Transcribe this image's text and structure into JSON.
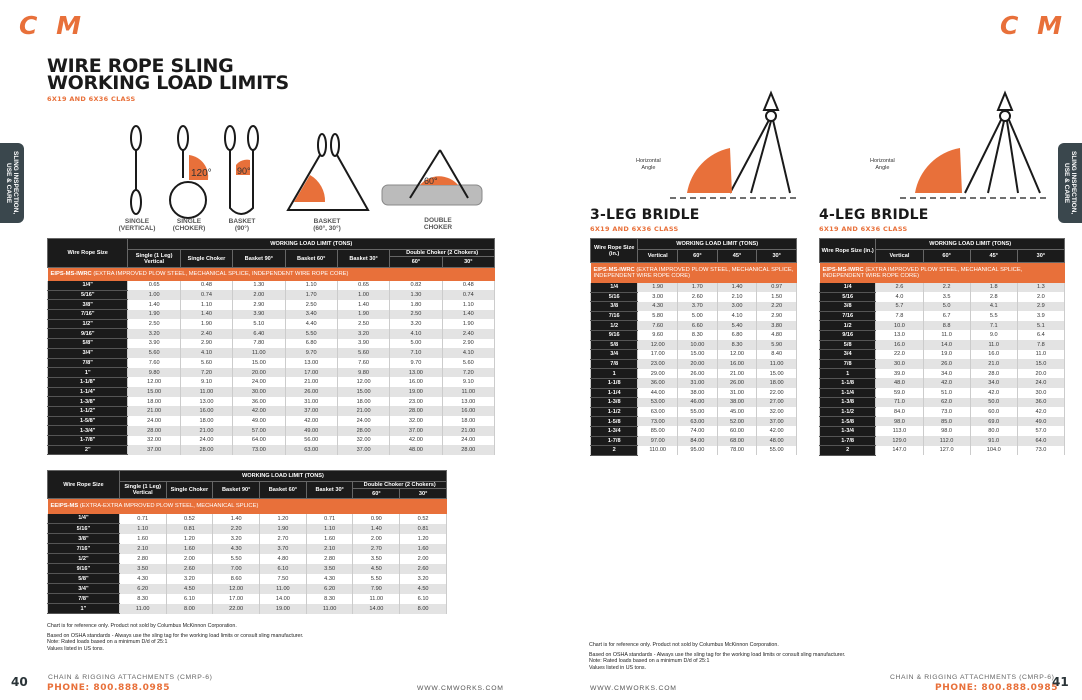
{
  "brand": {
    "logo_text": "CM",
    "accent": "#e8703a",
    "dark": "#1b1b1b"
  },
  "left_page": {
    "title_line1": "WIRE ROPE SLING",
    "title_line2": "WORKING LOAD LIMITS",
    "subtitle": "6X19 AND 6X36 CLASS",
    "side_tab": "SLING INSPECTION,\nUSE & CARE",
    "diagrams": [
      {
        "label": "SINGLE\n(VERTICAL)"
      },
      {
        "label": "SINGLE\n(CHOKER)",
        "angle": "120°"
      },
      {
        "label": "BASKET\n(90°)",
        "angle": "90°"
      },
      {
        "label": "BASKET\n(60°, 30°)"
      },
      {
        "label": "DOUBLE\nCHOKER",
        "angle": "60°"
      }
    ],
    "table1": {
      "size_header": "Wire Rope Size",
      "group_header": "WORKING LOAD LIMIT (TONS)",
      "columns": [
        "Single (1 Leg) Vertical",
        "Single Choker",
        "Basket 90°",
        "Basket 60°",
        "Basket 30°"
      ],
      "double_choker_header": "Double Choker (2 Chokers)",
      "double_choker_cols": [
        "60°",
        "30°"
      ],
      "band_code": "EIPS-MS-IWRC",
      "band_text": "(EXTRA IMPROVED PLOW STEEL, MECHANICAL SPLICE, INDEPENDENT WIRE ROPE CORE)",
      "rows": [
        [
          "1/4\"",
          "0.65",
          "0.48",
          "1.30",
          "1.10",
          "0.65",
          "0.82",
          "0.48"
        ],
        [
          "5/16\"",
          "1.00",
          "0.74",
          "2.00",
          "1.70",
          "1.00",
          "1.30",
          "0.74"
        ],
        [
          "3/8\"",
          "1.40",
          "1.10",
          "2.90",
          "2.50",
          "1.40",
          "1.80",
          "1.10"
        ],
        [
          "7/16\"",
          "1.90",
          "1.40",
          "3.90",
          "3.40",
          "1.90",
          "2.50",
          "1.40"
        ],
        [
          "1/2\"",
          "2.50",
          "1.90",
          "5.10",
          "4.40",
          "2.50",
          "3.20",
          "1.90"
        ],
        [
          "9/16\"",
          "3.20",
          "2.40",
          "6.40",
          "5.50",
          "3.20",
          "4.10",
          "2.40"
        ],
        [
          "5/8\"",
          "3.90",
          "2.90",
          "7.80",
          "6.80",
          "3.90",
          "5.00",
          "2.90"
        ],
        [
          "3/4\"",
          "5.60",
          "4.10",
          "11.00",
          "9.70",
          "5.60",
          "7.10",
          "4.10"
        ],
        [
          "7/8\"",
          "7.60",
          "5.60",
          "15.00",
          "13.00",
          "7.60",
          "9.70",
          "5.60"
        ],
        [
          "1\"",
          "9.80",
          "7.20",
          "20.00",
          "17.00",
          "9.80",
          "13.00",
          "7.20"
        ],
        [
          "1-1/8\"",
          "12.00",
          "9.10",
          "24.00",
          "21.00",
          "12.00",
          "16.00",
          "9.10"
        ],
        [
          "1-1/4\"",
          "15.00",
          "11.00",
          "30.00",
          "26.00",
          "15.00",
          "19.00",
          "11.00"
        ],
        [
          "1-3/8\"",
          "18.00",
          "13.00",
          "36.00",
          "31.00",
          "18.00",
          "23.00",
          "13.00"
        ],
        [
          "1-1/2\"",
          "21.00",
          "16.00",
          "42.00",
          "37.00",
          "21.00",
          "28.00",
          "16.00"
        ],
        [
          "1-5/8\"",
          "24.00",
          "18.00",
          "49.00",
          "42.00",
          "24.00",
          "32.00",
          "18.00"
        ],
        [
          "1-3/4\"",
          "28.00",
          "21.00",
          "57.00",
          "49.00",
          "28.00",
          "37.00",
          "21.00"
        ],
        [
          "1-7/8\"",
          "32.00",
          "24.00",
          "64.00",
          "56.00",
          "32.00",
          "42.00",
          "24.00"
        ],
        [
          "2\"",
          "37.00",
          "28.00",
          "73.00",
          "63.00",
          "37.00",
          "48.00",
          "28.00"
        ]
      ]
    },
    "table2": {
      "size_header": "Wire Rope Size",
      "group_header": "WORKING LOAD LIMIT (TONS)",
      "columns": [
        "Single (1 Leg) Vertical",
        "Single Choker",
        "Basket 90°",
        "Basket 60°",
        "Basket 30°"
      ],
      "double_choker_header": "Double Choker (2 Chokers)",
      "double_choker_cols": [
        "60°",
        "30°"
      ],
      "band_code": "EEIPS-MS",
      "band_text": "(EXTRA-EXTRA IMPROVED PLOW STEEL, MECHANICAL SPLICE)",
      "rows": [
        [
          "1/4\"",
          "0.71",
          "0.52",
          "1.40",
          "1.20",
          "0.71",
          "0.90",
          "0.52"
        ],
        [
          "5/16\"",
          "1.10",
          "0.81",
          "2.20",
          "1.90",
          "1.10",
          "1.40",
          "0.81"
        ],
        [
          "3/8\"",
          "1.60",
          "1.20",
          "3.20",
          "2.70",
          "1.60",
          "2.00",
          "1.20"
        ],
        [
          "7/16\"",
          "2.10",
          "1.60",
          "4.30",
          "3.70",
          "2.10",
          "2.70",
          "1.60"
        ],
        [
          "1/2\"",
          "2.80",
          "2.00",
          "5.50",
          "4.80",
          "2.80",
          "3.50",
          "2.00"
        ],
        [
          "9/16\"",
          "3.50",
          "2.60",
          "7.00",
          "6.10",
          "3.50",
          "4.50",
          "2.60"
        ],
        [
          "5/8\"",
          "4.30",
          "3.20",
          "8.60",
          "7.50",
          "4.30",
          "5.50",
          "3.20"
        ],
        [
          "3/4\"",
          "6.20",
          "4.50",
          "12.00",
          "11.00",
          "6.20",
          "7.90",
          "4.50"
        ],
        [
          "7/8\"",
          "8.30",
          "6.10",
          "17.00",
          "14.00",
          "8.30",
          "11.00",
          "6.10"
        ],
        [
          "1\"",
          "11.00",
          "8.00",
          "22.00",
          "19.00",
          "11.00",
          "14.00",
          "8.00"
        ]
      ]
    },
    "notes": [
      "Chart is for reference only. Product not sold by Columbus McKinnon Corporation.",
      "Based on OSHA standards - Always use the sling tag for the working load limits or consult sling manufacturer.",
      "Note: Rated loads based on a minimum D/d of 25:1",
      "Values listed in US tons."
    ],
    "footer": {
      "page": "40",
      "catalog": "CHAIN & RIGGING ATTACHMENTS (CMRP-6)",
      "phone": "PHONE: 800.888.0985",
      "website": "WWW.CMWORKS.COM"
    }
  },
  "right_page": {
    "side_tab": "SLING INSPECTION,\nUSE & CARE",
    "angle_label": "Horizontal\nAngle",
    "three_leg": {
      "title": "3-LEG BRIDLE",
      "subtitle": "6X19 AND 6X36 CLASS",
      "size_header": "Wire Rope Size (in.)",
      "group_header": "WORKING LOAD LIMIT (TONS)",
      "columns": [
        "Vertical",
        "60°",
        "45°",
        "30°"
      ],
      "band_code": "EIPS-MS-IWRC",
      "band_text": "(EXTRA IMPROVED PLOW STEEL, MECHANICAL SPLICE, INDEPENDENT WIRE ROPE CORE)",
      "rows": [
        [
          "1/4",
          "1.90",
          "1.70",
          "1.40",
          "0.97"
        ],
        [
          "5/16",
          "3.00",
          "2.60",
          "2.10",
          "1.50"
        ],
        [
          "3/8",
          "4.30",
          "3.70",
          "3.00",
          "2.20"
        ],
        [
          "7/16",
          "5.80",
          "5.00",
          "4.10",
          "2.90"
        ],
        [
          "1/2",
          "7.60",
          "6.60",
          "5.40",
          "3.80"
        ],
        [
          "9/16",
          "9.60",
          "8.30",
          "6.80",
          "4.80"
        ],
        [
          "5/8",
          "12.00",
          "10.00",
          "8.30",
          "5.90"
        ],
        [
          "3/4",
          "17.00",
          "15.00",
          "12.00",
          "8.40"
        ],
        [
          "7/8",
          "23.00",
          "20.00",
          "16.00",
          "11.00"
        ],
        [
          "1",
          "29.00",
          "26.00",
          "21.00",
          "15.00"
        ],
        [
          "1-1/8",
          "36.00",
          "31.00",
          "26.00",
          "18.00"
        ],
        [
          "1-1/4",
          "44.00",
          "38.00",
          "31.00",
          "22.00"
        ],
        [
          "1-3/8",
          "53.00",
          "46.00",
          "38.00",
          "27.00"
        ],
        [
          "1-1/2",
          "63.00",
          "55.00",
          "45.00",
          "32.00"
        ],
        [
          "1-5/8",
          "73.00",
          "63.00",
          "52.00",
          "37.00"
        ],
        [
          "1-3/4",
          "85.00",
          "74.00",
          "60.00",
          "42.00"
        ],
        [
          "1-7/8",
          "97.00",
          "84.00",
          "68.00",
          "48.00"
        ],
        [
          "2",
          "110.00",
          "95.00",
          "78.00",
          "55.00"
        ]
      ]
    },
    "four_leg": {
      "title": "4-LEG BRIDLE",
      "subtitle": "6X19 AND 6X36 CLASS",
      "size_header": "Wire Rope Size (in.)",
      "group_header": "WORKING LOAD LIMIT (TONS)",
      "columns": [
        "Vertical",
        "60°",
        "45°",
        "30°"
      ],
      "band_code": "EIPS-MS-IWRC",
      "band_text": "(EXTRA IMPROVED PLOW STEEL, MECHANICAL SPLICE, INDEPENDENT WIRE ROPE CORE)",
      "rows": [
        [
          "1/4",
          "2.6",
          "2.2",
          "1.8",
          "1.3"
        ],
        [
          "5/16",
          "4.0",
          "3.5",
          "2.8",
          "2.0"
        ],
        [
          "3/8",
          "5.7",
          "5.0",
          "4.1",
          "2.9"
        ],
        [
          "7/16",
          "7.8",
          "6.7",
          "5.5",
          "3.9"
        ],
        [
          "1/2",
          "10.0",
          "8.8",
          "7.1",
          "5.1"
        ],
        [
          "9/16",
          "13.0",
          "11.0",
          "9.0",
          "6.4"
        ],
        [
          "5/8",
          "16.0",
          "14.0",
          "11.0",
          "7.8"
        ],
        [
          "3/4",
          "22.0",
          "19.0",
          "16.0",
          "11.0"
        ],
        [
          "7/8",
          "30.0",
          "26.0",
          "21.0",
          "15.0"
        ],
        [
          "1",
          "39.0",
          "34.0",
          "28.0",
          "20.0"
        ],
        [
          "1-1/8",
          "48.0",
          "42.0",
          "34.0",
          "24.0"
        ],
        [
          "1-1/4",
          "59.0",
          "51.0",
          "42.0",
          "30.0"
        ],
        [
          "1-3/8",
          "71.0",
          "62.0",
          "50.0",
          "36.0"
        ],
        [
          "1-1/2",
          "84.0",
          "73.0",
          "60.0",
          "42.0"
        ],
        [
          "1-5/8",
          "98.0",
          "85.0",
          "69.0",
          "49.0"
        ],
        [
          "1-3/4",
          "113.0",
          "98.0",
          "80.0",
          "57.0"
        ],
        [
          "1-7/8",
          "129.0",
          "112.0",
          "91.0",
          "64.0"
        ],
        [
          "2",
          "147.0",
          "127.0",
          "104.0",
          "73.0"
        ]
      ]
    },
    "notes": [
      "Chart is for reference only. Product not sold by Columbus McKinnon Corporation.",
      "Based on OSHA standards - Always use the sling tag for the working load limits or consult sling manufacturer.",
      "Note: Rated loads based on a minimum D/d of 25:1",
      "Values listed in US tons."
    ],
    "footer": {
      "page": "41",
      "catalog": "CHAIN & RIGGING ATTACHMENTS (CMRP-6)",
      "phone": "PHONE: 800.888.0985",
      "website": "WWW.CMWORKS.COM"
    }
  }
}
